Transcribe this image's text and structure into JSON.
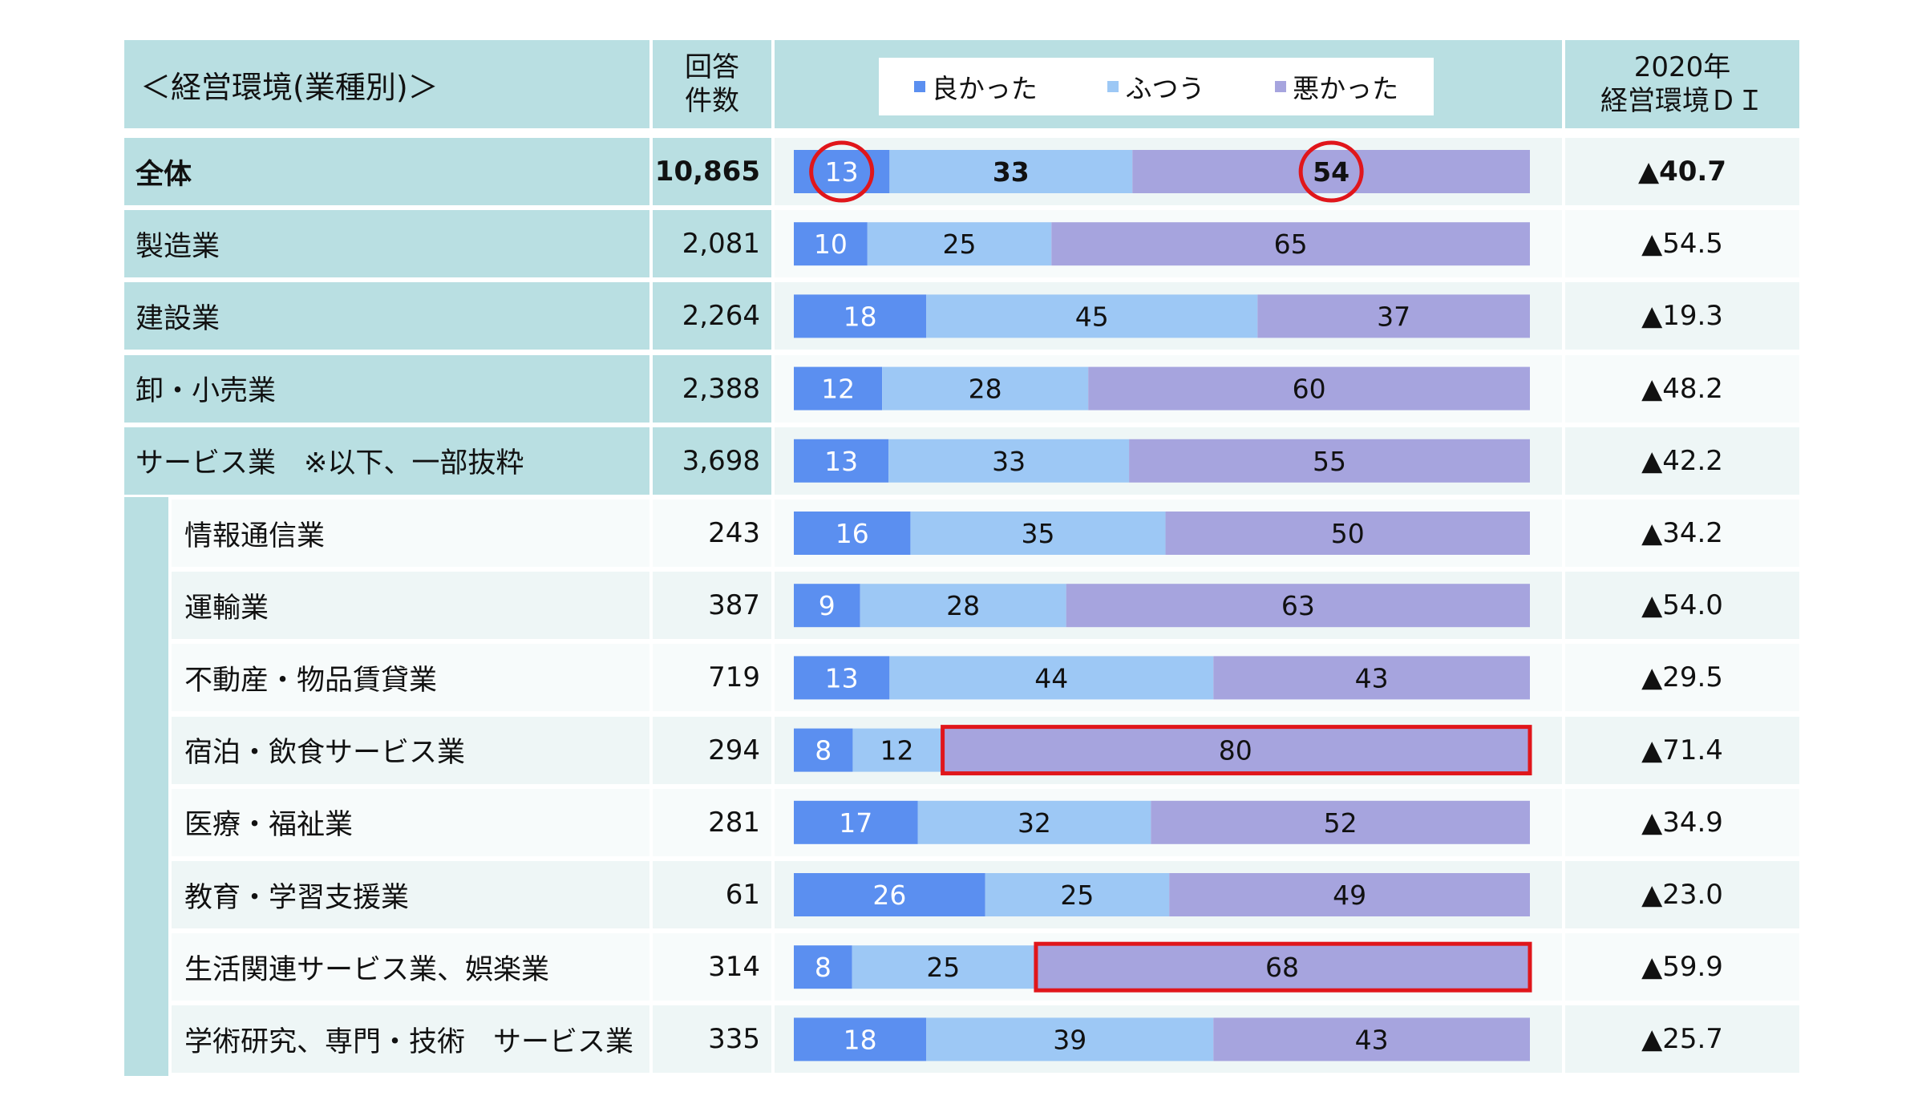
{
  "header": {
    "title": "＜経営環境(業種別)＞",
    "count_label_line1": "回答",
    "count_label_line2": "件数",
    "di_label_line1": "2020年",
    "di_label_line2": "経営環境ＤＩ"
  },
  "colors": {
    "good": "#5b8ff0",
    "normal": "#9dc8f5",
    "bad": "#a6a4de",
    "header_bg": "#b9dfe2",
    "highlight": "#e0161b"
  },
  "chart_data": {
    "type": "bar",
    "orientation": "horizontal",
    "stacked": true,
    "unit": "%",
    "categories": [
      "全体",
      "製造業",
      "建設業",
      "卸・小売業",
      "サービス業　※以下、一部抜粋",
      "情報通信業",
      "運輸業",
      "不動産・物品賃貸業",
      "宿泊・飲食サービス業",
      "医療・福祉業",
      "教育・学習支援業",
      "生活関連サービス業、娯楽業",
      "学術研究、専門・技術　サービス業"
    ],
    "series": [
      {
        "name": "良かった",
        "color": "#5b8ff0",
        "values": [
          13,
          10,
          18,
          12,
          13,
          16,
          9,
          13,
          8,
          17,
          26,
          8,
          18
        ]
      },
      {
        "name": "ふつう",
        "color": "#9dc8f5",
        "values": [
          33,
          25,
          45,
          28,
          33,
          35,
          28,
          44,
          12,
          32,
          25,
          25,
          39
        ]
      },
      {
        "name": "悪かった",
        "color": "#a6a4de",
        "values": [
          54,
          65,
          37,
          60,
          55,
          50,
          63,
          43,
          80,
          52,
          49,
          68,
          43
        ]
      }
    ],
    "response_counts": [
      "10,865",
      "2,081",
      "2,264",
      "2,388",
      "3,698",
      "243",
      "387",
      "719",
      "294",
      "281",
      "61",
      "314",
      "335"
    ],
    "di_values": [
      "▲40.7",
      "▲54.5",
      "▲19.3",
      "▲48.2",
      "▲42.2",
      "▲34.2",
      "▲54.0",
      "▲29.5",
      "▲71.4",
      "▲34.9",
      "▲23.0",
      "▲59.9",
      "▲25.7"
    ],
    "legend_position": "top",
    "highlights": [
      {
        "type": "circle",
        "row": 0,
        "series": 0
      },
      {
        "type": "circle",
        "row": 0,
        "series": 2
      },
      {
        "type": "rect",
        "row": 8,
        "series": 2
      },
      {
        "type": "rect",
        "row": 11,
        "series": 2
      }
    ]
  }
}
